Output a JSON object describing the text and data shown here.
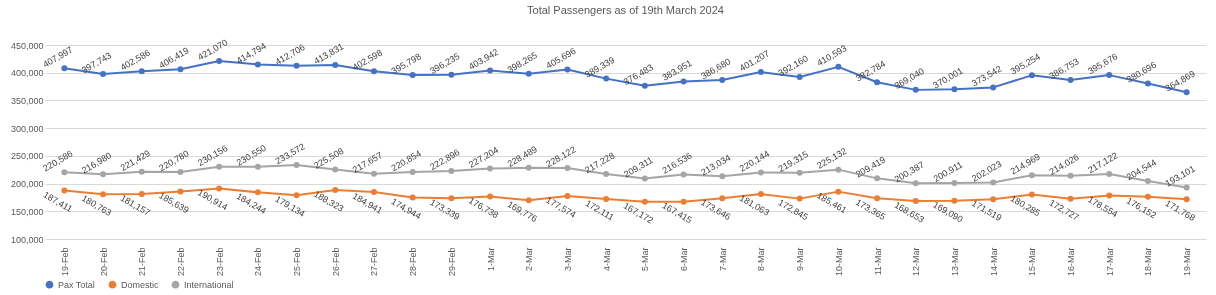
{
  "chart_data": {
    "type": "line",
    "title": "Total Passengers as of 19th March 2024",
    "categories": [
      "19-Feb",
      "20-Feb",
      "21-Feb",
      "22-Feb",
      "23-Feb",
      "24-Feb",
      "25-Feb",
      "26-Feb",
      "27-Feb",
      "28-Feb",
      "29-Feb",
      "1-Mar",
      "2-Mar",
      "3-Mar",
      "4-Mar",
      "5-Mar",
      "6-Mar",
      "7-Mar",
      "8-Mar",
      "9-Mar",
      "10-Mar",
      "11-Mar",
      "12-Mar",
      "13-Mar",
      "14-Mar",
      "15-Mar",
      "16-Mar",
      "17-Mar",
      "18-Mar",
      "19-Mar"
    ],
    "series": [
      {
        "name": "Pax Total",
        "color": "#4472c4",
        "values": [
          407997,
          397743,
          402586,
          406419,
          421070,
          414794,
          412706,
          413831,
          402598,
          395798,
          396235,
          403942,
          398265,
          405696,
          389339,
          376483,
          383951,
          386680,
          401207,
          392160,
          410593,
          382784,
          369040,
          370001,
          373542,
          395254,
          386753,
          395676,
          380696,
          364869
        ],
        "value_labels": [
          "407,997",
          "397,743",
          "402,586",
          "406,419",
          "421,070",
          "414,794",
          "412,706",
          "413,831",
          "402,598",
          "395,798",
          "396,235",
          "403,942",
          "398,265",
          "405,696",
          "389,339",
          "376,483",
          "383,951",
          "386,680",
          "401,207",
          "392,160",
          "410,593",
          "382,784",
          "369,040",
          "370,001",
          "373,542",
          "395,254",
          "386,753",
          "395,676",
          "380,696",
          "364,869"
        ]
      },
      {
        "name": "Domestic",
        "color": "#ed7d31",
        "values": [
          187411,
          180763,
          181157,
          185639,
          190914,
          184244,
          179134,
          188323,
          184941,
          174944,
          173339,
          176738,
          169776,
          177574,
          172111,
          167172,
          167415,
          173646,
          181063,
          172845,
          185461,
          173365,
          168653,
          169090,
          171519,
          180285,
          172727,
          178554,
          176152,
          171768
        ],
        "value_labels": [
          "187,411",
          "180,763",
          "181,157",
          "185,639",
          "190,914",
          "184,244",
          "179,134",
          "188,323",
          "184,941",
          "174,944",
          "173,339",
          "176,738",
          "169,776",
          "177,574",
          "172,111",
          "167,172",
          "167,415",
          "173,646",
          "181,063",
          "172,845",
          "185,461",
          "173,365",
          "168,653",
          "169,090",
          "171,519",
          "180,285",
          "172,727",
          "178,554",
          "176,152",
          "171,768"
        ]
      },
      {
        "name": "International",
        "color": "#a5a5a5",
        "values": [
          220586,
          216980,
          221429,
          220780,
          230156,
          230550,
          233572,
          225508,
          217657,
          220854,
          222896,
          227204,
          228489,
          228122,
          217228,
          209311,
          216536,
          213034,
          220144,
          219315,
          225132,
          209419,
          200387,
          200911,
          202023,
          214969,
          214026,
          217122,
          204544,
          193101
        ],
        "value_labels": [
          "220,586",
          "216,980",
          "221,429",
          "220,780",
          "230,156",
          "230,550",
          "233,572",
          "225,508",
          "217,657",
          "220,854",
          "222,896",
          "227,204",
          "228,489",
          "228,122",
          "217,228",
          "209,311",
          "216,536",
          "213,034",
          "220,144",
          "219,315",
          "225,132",
          "209,419",
          "200,387",
          "200,911",
          "202,023",
          "214,969",
          "214,026",
          "217,122",
          "204,544",
          "193,101"
        ]
      }
    ],
    "ylim": [
      100000,
      450000
    ],
    "yticks": [
      {
        "value": 100000,
        "label": "100,000"
      },
      {
        "value": 150000,
        "label": "150,000"
      },
      {
        "value": 200000,
        "label": "200,000"
      },
      {
        "value": 250000,
        "label": "250,000"
      },
      {
        "value": 300000,
        "label": "300,000"
      },
      {
        "value": 350000,
        "label": "350,000"
      },
      {
        "value": 400000,
        "label": "400,000"
      },
      {
        "value": 450000,
        "label": "450,000"
      }
    ],
    "grid": "y",
    "legend": "bottom",
    "marker": "circle"
  }
}
